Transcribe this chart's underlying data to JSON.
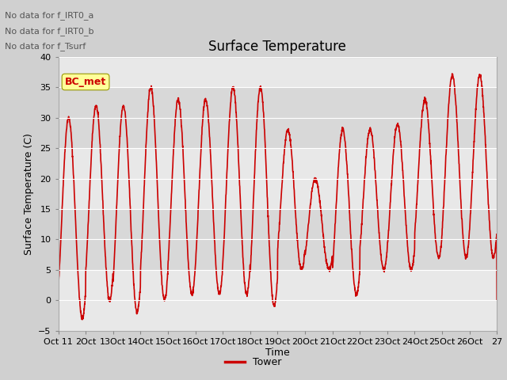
{
  "title": "Surface Temperature",
  "xlabel": "Time",
  "ylabel": "Surface Temperature (C)",
  "ylim": [
    -5,
    40
  ],
  "yticks": [
    -5,
    0,
    5,
    10,
    15,
    20,
    25,
    30,
    35,
    40
  ],
  "xtick_labels": [
    "Oct 11",
    "2Oct",
    "13Oct",
    "14Oct",
    "15Oct",
    "16Oct",
    "17Oct",
    "18Oct",
    "19Oct",
    "20Oct",
    "21Oct",
    "22Oct",
    "23Oct",
    "24Oct",
    "25Oct",
    "26Oct",
    "27"
  ],
  "line_color": "#cc0000",
  "line_width": 1.2,
  "legend_label": "Tower",
  "no_data_texts": [
    "No data for f_IRT0_a",
    "No data for f_IRT0_b",
    "No data for f_Tsurf"
  ],
  "bc_met_label": "BC_met",
  "fig_bg": "#d0d0d0",
  "plot_bg": "#e8e8e8",
  "band_bg": "#d8d8d8",
  "title_fontsize": 12,
  "axis_label_fontsize": 9,
  "tick_fontsize": 8,
  "nodata_fontsize": 8,
  "day_highs": [
    30,
    32,
    32,
    35,
    33,
    33,
    35,
    35,
    28,
    20,
    28,
    28,
    29,
    33,
    37,
    37
  ],
  "day_lows": [
    -3,
    0,
    -2,
    0,
    1,
    1,
    1,
    -1,
    5,
    5,
    1,
    5,
    5,
    7,
    7,
    7
  ],
  "peak_hour": 13,
  "low_hour": 3
}
